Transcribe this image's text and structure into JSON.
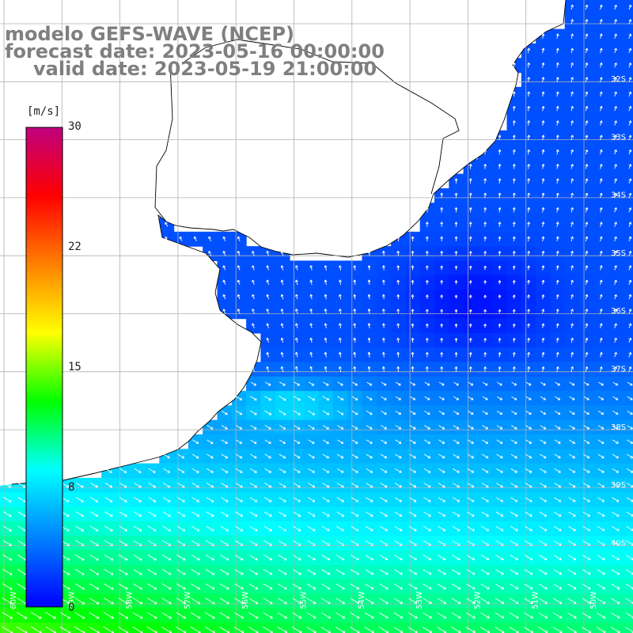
{
  "titles": {
    "line1": "modelo GEFS-WAVE (NCEP)",
    "line2": "forecast date: 2023-05-16 00:00:00",
    "line3": "valid date: 2023-05-19 21:00:00"
  },
  "colorbar": {
    "unit": "[m/s]",
    "ticks": [
      {
        "label": "30",
        "value": 30
      },
      {
        "label": "22",
        "value": 22
      },
      {
        "label": "15",
        "value": 15
      },
      {
        "label": "8",
        "value": 8
      },
      {
        "label": "0",
        "value": 0
      }
    ],
    "colors": [
      "#0000ff",
      "#0080ff",
      "#00ffff",
      "#00ff00",
      "#ffff00",
      "#ff8000",
      "#ff0000",
      "#c00080"
    ]
  },
  "lat_labels": [
    "32S",
    "33S",
    "34S",
    "35S",
    "36S",
    "37S",
    "38S",
    "39S",
    "40S"
  ],
  "lon_labels": [
    "60W",
    "59W",
    "58W",
    "57W",
    "56W",
    "55W",
    "54W",
    "53W",
    "52W",
    "51W",
    "50W"
  ],
  "colors": {
    "land": "#ffffff",
    "grid": "#b0b0b0",
    "coast": "#000000",
    "arrow": "#ffffff",
    "title": "#7f7f7f"
  }
}
